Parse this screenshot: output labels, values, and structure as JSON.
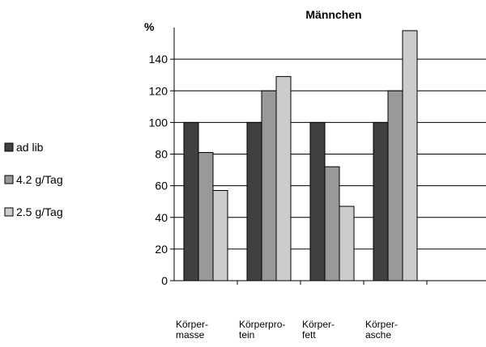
{
  "chart_data": {
    "type": "bar",
    "title": "Männchen",
    "ylabel": "%",
    "xlabel": "",
    "ylim": [
      0,
      160
    ],
    "yticks": [
      0,
      20,
      40,
      60,
      80,
      100,
      120,
      140
    ],
    "grid": true,
    "legend_position": "left",
    "categories": [
      [
        "Körper-",
        "masse"
      ],
      [
        "Körperpro-",
        "tein"
      ],
      [
        "Körper-",
        "fett"
      ],
      [
        "Körper-",
        "asche"
      ]
    ],
    "series": [
      {
        "name": "ad lib",
        "color": "#404040",
        "values": [
          100,
          100,
          100,
          100
        ]
      },
      {
        "name": "4.2 g/Tag",
        "color": "#999999",
        "values": [
          81,
          120,
          72,
          120
        ]
      },
      {
        "name": "2.5 g/Tag",
        "color": "#cccccc",
        "values": [
          57,
          129,
          47,
          158
        ]
      }
    ]
  }
}
